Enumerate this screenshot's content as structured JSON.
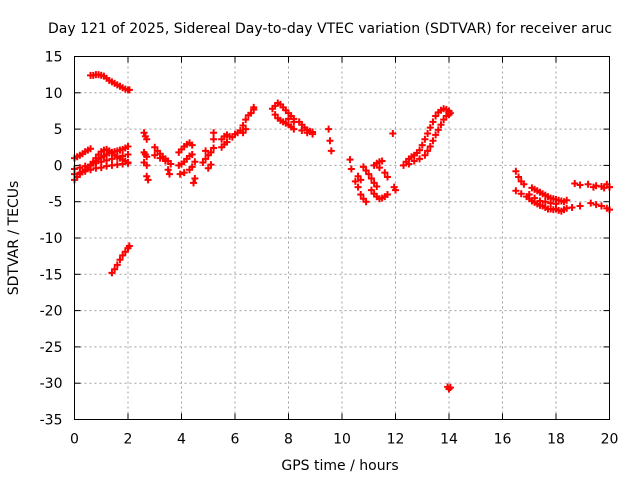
{
  "chart_data": {
    "type": "scatter",
    "title": "Day 121 of 2025, Sidereal Day-to-day VTEC variation (SDTVAR) for receiver aruc",
    "xlabel": "GPS time / hours",
    "ylabel": "SDTVAR / TECUs",
    "xlim": [
      0,
      20
    ],
    "ylim": [
      -35,
      15
    ],
    "xticks": [
      0,
      2,
      4,
      6,
      8,
      10,
      12,
      14,
      16,
      18,
      20
    ],
    "yticks": [
      -35,
      -30,
      -25,
      -20,
      -15,
      -10,
      -5,
      0,
      5,
      10,
      15
    ],
    "grid": true,
    "marker": "+",
    "color": "#ff0000",
    "series": [
      {
        "name": "SDTVAR",
        "points": [
          [
            0.6,
            12.4
          ],
          [
            0.7,
            12.4
          ],
          [
            0.8,
            12.5
          ],
          [
            0.9,
            12.5
          ],
          [
            1.0,
            12.4
          ],
          [
            1.1,
            12.3
          ],
          [
            1.2,
            12.0
          ],
          [
            1.3,
            11.7
          ],
          [
            1.4,
            11.5
          ],
          [
            1.5,
            11.3
          ],
          [
            1.6,
            11.1
          ],
          [
            1.7,
            10.9
          ],
          [
            1.8,
            10.7
          ],
          [
            1.9,
            10.5
          ],
          [
            2.0,
            10.4
          ],
          [
            2.05,
            10.4
          ],
          [
            0.0,
            1.0
          ],
          [
            0.1,
            1.2
          ],
          [
            0.2,
            1.4
          ],
          [
            0.3,
            1.6
          ],
          [
            0.4,
            1.9
          ],
          [
            0.5,
            2.1
          ],
          [
            0.6,
            2.3
          ],
          [
            0.0,
            -2.0
          ],
          [
            0.1,
            -1.6
          ],
          [
            0.2,
            -1.2
          ],
          [
            0.3,
            -0.9
          ],
          [
            0.4,
            -0.6
          ],
          [
            0.5,
            -0.3
          ],
          [
            0.6,
            0.0
          ],
          [
            0.7,
            0.3
          ],
          [
            0.8,
            0.6
          ],
          [
            0.9,
            0.9
          ],
          [
            1.0,
            1.1
          ],
          [
            1.1,
            1.3
          ],
          [
            1.2,
            1.5
          ],
          [
            1.3,
            1.7
          ],
          [
            1.4,
            1.8
          ],
          [
            1.5,
            1.9
          ],
          [
            1.6,
            2.0
          ],
          [
            1.7,
            2.1
          ],
          [
            1.8,
            2.2
          ],
          [
            1.9,
            2.4
          ],
          [
            2.0,
            2.6
          ],
          [
            0.0,
            -1.2
          ],
          [
            0.2,
            -1.0
          ],
          [
            0.4,
            -0.8
          ],
          [
            0.6,
            -0.6
          ],
          [
            0.8,
            -0.4
          ],
          [
            1.0,
            -0.3
          ],
          [
            1.2,
            -0.1
          ],
          [
            1.4,
            0.0
          ],
          [
            1.6,
            0.1
          ],
          [
            1.8,
            0.2
          ],
          [
            2.0,
            0.3
          ],
          [
            0.0,
            -0.5
          ],
          [
            0.2,
            -0.3
          ],
          [
            0.4,
            -0.1
          ],
          [
            0.6,
            0.1
          ],
          [
            0.8,
            0.3
          ],
          [
            1.0,
            0.5
          ],
          [
            1.2,
            0.7
          ],
          [
            1.4,
            0.9
          ],
          [
            1.6,
            1.1
          ],
          [
            1.8,
            1.3
          ],
          [
            2.0,
            1.5
          ],
          [
            0.7,
            0.5
          ],
          [
            0.8,
            1.0
          ],
          [
            0.9,
            1.5
          ],
          [
            1.0,
            1.9
          ],
          [
            1.1,
            2.1
          ],
          [
            1.2,
            2.2
          ],
          [
            1.3,
            2.0
          ],
          [
            1.4,
            1.7
          ],
          [
            1.5,
            1.4
          ],
          [
            1.6,
            1.2
          ],
          [
            1.7,
            1.0
          ],
          [
            1.8,
            0.8
          ],
          [
            1.9,
            0.6
          ],
          [
            2.0,
            0.4
          ],
          [
            1.4,
            -14.8
          ],
          [
            1.5,
            -14.3
          ],
          [
            1.6,
            -13.7
          ],
          [
            1.7,
            -13.0
          ],
          [
            1.8,
            -12.4
          ],
          [
            1.9,
            -11.9
          ],
          [
            2.0,
            -11.4
          ],
          [
            2.05,
            -11.1
          ],
          [
            2.6,
            4.5
          ],
          [
            2.65,
            4.0
          ],
          [
            2.7,
            3.6
          ],
          [
            2.6,
            1.8
          ],
          [
            2.65,
            1.5
          ],
          [
            2.7,
            1.2
          ],
          [
            2.7,
            -1.5
          ],
          [
            2.75,
            -2.0
          ],
          [
            2.6,
            0.4
          ],
          [
            2.7,
            0.0
          ],
          [
            3.0,
            2.5
          ],
          [
            3.1,
            2.0
          ],
          [
            3.2,
            1.6
          ],
          [
            3.3,
            1.2
          ],
          [
            3.4,
            0.9
          ],
          [
            3.5,
            0.6
          ],
          [
            3.0,
            1.4
          ],
          [
            3.2,
            1.0
          ],
          [
            3.4,
            0.6
          ],
          [
            3.6,
            0.2
          ],
          [
            3.5,
            -0.6
          ],
          [
            3.55,
            -1.2
          ],
          [
            3.9,
            1.8
          ],
          [
            4.0,
            2.2
          ],
          [
            4.1,
            2.6
          ],
          [
            4.2,
            2.9
          ],
          [
            4.3,
            3.1
          ],
          [
            4.4,
            2.8
          ],
          [
            3.9,
            0.0
          ],
          [
            4.0,
            0.2
          ],
          [
            4.1,
            0.5
          ],
          [
            4.2,
            0.9
          ],
          [
            4.3,
            1.3
          ],
          [
            4.4,
            1.5
          ],
          [
            3.95,
            -1.2
          ],
          [
            4.1,
            -1.0
          ],
          [
            4.3,
            -0.6
          ],
          [
            4.4,
            -0.2
          ],
          [
            4.45,
            -2.4
          ],
          [
            4.5,
            -1.8
          ],
          [
            4.5,
            0.5
          ],
          [
            4.8,
            0.4
          ],
          [
            4.9,
            0.9
          ],
          [
            5.0,
            1.4
          ],
          [
            5.1,
            1.8
          ],
          [
            5.2,
            2.4
          ],
          [
            5.0,
            -0.4
          ],
          [
            5.1,
            0.1
          ],
          [
            4.9,
            2.0
          ],
          [
            5.2,
            3.6
          ],
          [
            5.2,
            4.5
          ],
          [
            5.5,
            2.5
          ],
          [
            5.6,
            2.9
          ],
          [
            5.7,
            3.2
          ],
          [
            5.5,
            3.6
          ],
          [
            5.6,
            4.0
          ],
          [
            5.7,
            4.2
          ],
          [
            5.8,
            4.0
          ],
          [
            5.9,
            3.9
          ],
          [
            6.0,
            4.3
          ],
          [
            6.1,
            4.5
          ],
          [
            6.2,
            4.8
          ],
          [
            6.3,
            5.5
          ],
          [
            6.4,
            6.3
          ],
          [
            6.5,
            6.9
          ],
          [
            6.6,
            7.2
          ],
          [
            6.7,
            7.7
          ],
          [
            6.7,
            8.0
          ],
          [
            6.3,
            4.5
          ],
          [
            6.4,
            5.0
          ],
          [
            7.4,
            7.8
          ],
          [
            7.5,
            8.2
          ],
          [
            7.6,
            8.6
          ],
          [
            7.7,
            8.4
          ],
          [
            7.8,
            8.0
          ],
          [
            7.9,
            7.6
          ],
          [
            8.0,
            7.2
          ],
          [
            8.1,
            6.8
          ],
          [
            8.2,
            6.4
          ],
          [
            7.5,
            7.0
          ],
          [
            7.6,
            6.5
          ],
          [
            7.7,
            6.2
          ],
          [
            7.8,
            6.0
          ],
          [
            7.9,
            5.8
          ],
          [
            8.0,
            5.6
          ],
          [
            8.1,
            5.3
          ],
          [
            8.2,
            5.0
          ],
          [
            8.0,
            6.4
          ],
          [
            8.2,
            6.0
          ],
          [
            8.4,
            6.0
          ],
          [
            8.5,
            5.6
          ],
          [
            8.6,
            5.2
          ],
          [
            8.7,
            4.9
          ],
          [
            8.8,
            4.7
          ],
          [
            8.9,
            4.6
          ],
          [
            8.5,
            4.8
          ],
          [
            8.7,
            4.5
          ],
          [
            8.9,
            4.3
          ],
          [
            9.5,
            5.0
          ],
          [
            9.55,
            3.4
          ],
          [
            9.6,
            2.0
          ],
          [
            10.3,
            0.8
          ],
          [
            10.35,
            -0.5
          ],
          [
            10.5,
            -2.2
          ],
          [
            10.6,
            -3.0
          ],
          [
            10.7,
            -4.0
          ],
          [
            10.8,
            -4.6
          ],
          [
            10.9,
            -5.0
          ],
          [
            10.6,
            -1.5
          ],
          [
            10.7,
            -2.0
          ],
          [
            10.8,
            -0.2
          ],
          [
            10.9,
            -0.7
          ],
          [
            11.0,
            -1.2
          ],
          [
            11.1,
            -1.8
          ],
          [
            11.2,
            -2.4
          ],
          [
            11.3,
            -2.9
          ],
          [
            11.1,
            -3.4
          ],
          [
            11.2,
            -3.9
          ],
          [
            11.3,
            -4.3
          ],
          [
            11.4,
            -4.6
          ],
          [
            11.5,
            -4.5
          ],
          [
            11.6,
            -4.3
          ],
          [
            11.7,
            -4.0
          ],
          [
            11.2,
            0.0
          ],
          [
            11.3,
            0.3
          ],
          [
            11.4,
            0.5
          ],
          [
            11.5,
            0.6
          ],
          [
            11.4,
            -0.3
          ],
          [
            11.6,
            -1.0
          ],
          [
            11.7,
            -1.6
          ],
          [
            11.9,
            4.4
          ],
          [
            11.95,
            -3.0
          ],
          [
            12.0,
            -3.4
          ],
          [
            12.3,
            0.0
          ],
          [
            12.4,
            0.5
          ],
          [
            12.5,
            0.9
          ],
          [
            12.6,
            1.2
          ],
          [
            12.7,
            1.4
          ],
          [
            12.8,
            1.7
          ],
          [
            12.9,
            2.1
          ],
          [
            13.0,
            2.8
          ],
          [
            13.1,
            3.6
          ],
          [
            13.2,
            4.4
          ],
          [
            13.3,
            5.2
          ],
          [
            13.4,
            6.0
          ],
          [
            13.5,
            6.8
          ],
          [
            13.6,
            7.3
          ],
          [
            13.7,
            7.6
          ],
          [
            13.8,
            7.8
          ],
          [
            13.9,
            7.7
          ],
          [
            14.0,
            7.5
          ],
          [
            14.05,
            7.2
          ],
          [
            12.5,
            0.2
          ],
          [
            12.7,
            0.6
          ],
          [
            12.9,
            0.9
          ],
          [
            13.1,
            1.4
          ],
          [
            13.2,
            2.0
          ],
          [
            13.3,
            2.6
          ],
          [
            13.4,
            3.4
          ],
          [
            13.5,
            4.2
          ],
          [
            13.6,
            4.9
          ],
          [
            13.7,
            5.6
          ],
          [
            13.8,
            6.3
          ],
          [
            13.9,
            6.8
          ],
          [
            14.0,
            7.0
          ],
          [
            13.95,
            -30.5
          ],
          [
            14.0,
            -30.8
          ],
          [
            14.05,
            -30.6
          ],
          [
            16.5,
            -0.8
          ],
          [
            16.6,
            -1.6
          ],
          [
            16.7,
            -2.2
          ],
          [
            16.8,
            -2.6
          ],
          [
            16.5,
            -3.5
          ],
          [
            16.7,
            -3.9
          ],
          [
            16.9,
            -4.3
          ],
          [
            17.0,
            -4.6
          ],
          [
            17.1,
            -4.9
          ],
          [
            17.2,
            -5.1
          ],
          [
            17.3,
            -5.3
          ],
          [
            17.4,
            -5.5
          ],
          [
            17.5,
            -5.6
          ],
          [
            17.6,
            -5.8
          ],
          [
            17.7,
            -6.0
          ],
          [
            17.8,
            -6.0
          ],
          [
            17.9,
            -6.1
          ],
          [
            18.0,
            -6.0
          ],
          [
            18.1,
            -6.2
          ],
          [
            18.2,
            -6.3
          ],
          [
            18.3,
            -6.1
          ],
          [
            18.4,
            -5.9
          ],
          [
            17.1,
            -3.1
          ],
          [
            17.2,
            -3.3
          ],
          [
            17.3,
            -3.5
          ],
          [
            17.4,
            -3.7
          ],
          [
            17.5,
            -3.9
          ],
          [
            17.6,
            -4.1
          ],
          [
            17.7,
            -4.3
          ],
          [
            17.8,
            -4.5
          ],
          [
            17.9,
            -4.6
          ],
          [
            18.0,
            -4.7
          ],
          [
            18.1,
            -4.8
          ],
          [
            18.2,
            -4.9
          ],
          [
            18.3,
            -5.0
          ],
          [
            18.4,
            -4.8
          ],
          [
            17.0,
            -4.0
          ],
          [
            17.2,
            -4.5
          ],
          [
            17.4,
            -4.9
          ],
          [
            17.6,
            -5.0
          ],
          [
            17.8,
            -5.2
          ],
          [
            18.0,
            -5.3
          ],
          [
            18.7,
            -2.5
          ],
          [
            18.9,
            -2.7
          ],
          [
            19.2,
            -2.6
          ],
          [
            19.4,
            -3.0
          ],
          [
            19.5,
            -2.8
          ],
          [
            19.7,
            -2.9
          ],
          [
            19.8,
            -3.1
          ],
          [
            19.9,
            -2.6
          ],
          [
            20.0,
            -3.0
          ],
          [
            18.6,
            -5.8
          ],
          [
            18.9,
            -5.6
          ],
          [
            19.3,
            -5.2
          ],
          [
            19.5,
            -5.4
          ],
          [
            19.7,
            -5.6
          ],
          [
            19.9,
            -5.9
          ],
          [
            20.0,
            -6.1
          ]
        ]
      }
    ]
  }
}
